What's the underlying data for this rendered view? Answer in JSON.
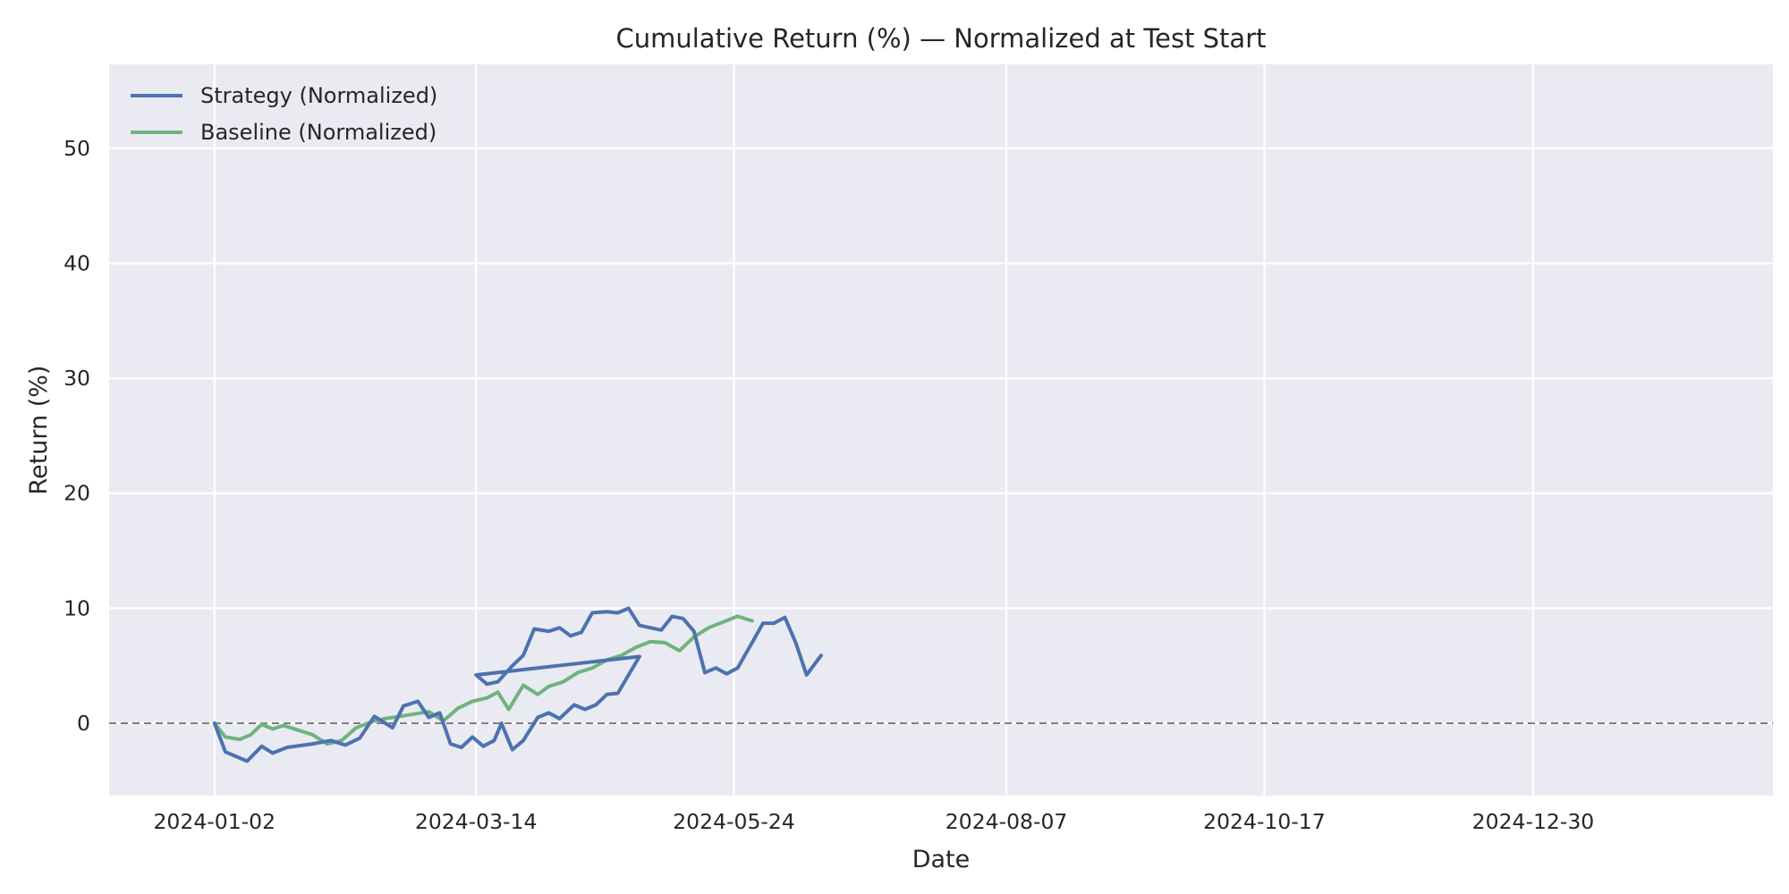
{
  "chart_data": {
    "type": "line",
    "title": "Cumulative Return (%) — Normalized at Test Start",
    "xlabel": "Date",
    "ylabel": "Return (%)",
    "x_range": [
      "2023-12-04",
      "2025-03-06"
    ],
    "ylim": [
      -6.3,
      57.3
    ],
    "x_ticks": [
      "2024-01-02",
      "2024-03-14",
      "2024-05-24",
      "2024-08-07",
      "2024-10-17",
      "2024-12-30"
    ],
    "y_ticks": [
      0,
      10,
      20,
      30,
      40,
      50
    ],
    "grid": true,
    "reference_line": {
      "y": 0,
      "style": "dashed",
      "color": "#808080"
    },
    "legend": {
      "position": "top-left"
    },
    "series": [
      {
        "name": "Strategy (Normalized)",
        "color": "#4c72b0",
        "points": [
          [
            "2024-01-02",
            0.0
          ],
          [
            "2024-01-05",
            -2.5
          ],
          [
            "2024-01-11",
            -3.3
          ],
          [
            "2024-01-15",
            -2.0
          ],
          [
            "2024-01-18",
            -2.6
          ],
          [
            "2024-01-22",
            -2.1
          ],
          [
            "2024-01-29",
            -1.8
          ],
          [
            "2024-02-03",
            -1.5
          ],
          [
            "2024-02-07",
            -1.9
          ],
          [
            "2024-02-11",
            -1.3
          ],
          [
            "2024-02-15",
            0.6
          ],
          [
            "2024-02-20",
            -0.4
          ],
          [
            "2024-02-23",
            1.5
          ],
          [
            "2024-02-27",
            1.9
          ],
          [
            "2024-03-01",
            0.5
          ],
          [
            "2024-03-04",
            0.9
          ],
          [
            "2024-03-07",
            -1.8
          ],
          [
            "2024-03-10",
            -2.1
          ],
          [
            "2024-03-13",
            -1.2
          ],
          [
            "2024-03-16",
            -2.0
          ],
          [
            "2024-03-19",
            -1.5
          ],
          [
            "2024-03-21",
            0.0
          ],
          [
            "2024-03-24",
            -2.3
          ],
          [
            "2024-03-27",
            -1.5
          ],
          [
            "2024-03-31",
            0.5
          ],
          [
            "2024-04-03",
            0.9
          ],
          [
            "2024-04-06",
            0.4
          ],
          [
            "2024-04-10",
            1.6
          ],
          [
            "2024-04-13",
            1.2
          ],
          [
            "2024-04-16",
            1.6
          ],
          [
            "2024-04-19",
            2.5
          ],
          [
            "2024-04-22",
            2.6
          ],
          [
            "2024-04-25",
            4.2
          ],
          [
            "2024-04-28",
            5.8
          ],
          [
            "2024-03-14",
            4.2
          ],
          [
            "2024-03-17",
            3.4
          ],
          [
            "2024-03-20",
            3.6
          ],
          [
            "2024-03-24",
            5.0
          ],
          [
            "2024-03-27",
            5.9
          ],
          [
            "2024-03-30",
            8.2
          ],
          [
            "2024-04-03",
            8.0
          ],
          [
            "2024-04-06",
            8.3
          ],
          [
            "2024-04-09",
            7.6
          ],
          [
            "2024-04-12",
            7.9
          ],
          [
            "2024-04-15",
            9.6
          ],
          [
            "2024-04-19",
            9.7
          ],
          [
            "2024-04-22",
            9.6
          ],
          [
            "2024-04-25",
            10.0
          ],
          [
            "2024-04-28",
            8.5
          ],
          [
            "2024-05-01",
            8.3
          ],
          [
            "2024-05-04",
            8.1
          ],
          [
            "2024-05-07",
            9.3
          ],
          [
            "2024-05-10",
            9.1
          ],
          [
            "2024-05-13",
            8.0
          ],
          [
            "2024-05-16",
            4.4
          ],
          [
            "2024-05-19",
            4.8
          ],
          [
            "2024-05-22",
            4.3
          ],
          [
            "2024-05-25",
            4.8
          ],
          [
            "2024-05-29",
            7.0
          ],
          [
            "2024-06-01",
            8.7
          ],
          [
            "2024-06-04",
            8.7
          ],
          [
            "2024-06-07",
            9.2
          ],
          [
            "2024-06-10",
            7.0
          ],
          [
            "2024-06-13",
            4.2
          ],
          [
            "2024-06-17",
            5.9
          ]
        ]
      },
      {
        "name": "Baseline (Normalized)",
        "color": "#6fb37d",
        "points": [
          [
            "2024-01-02",
            0.0
          ],
          [
            "2024-01-05",
            -1.2
          ],
          [
            "2024-01-09",
            -1.4
          ],
          [
            "2024-01-12",
            -1.0
          ],
          [
            "2024-01-15",
            -0.1
          ],
          [
            "2024-01-18",
            -0.5
          ],
          [
            "2024-01-21",
            -0.2
          ],
          [
            "2024-01-25",
            -0.6
          ],
          [
            "2024-01-29",
            -1.0
          ],
          [
            "2024-02-02",
            -1.8
          ],
          [
            "2024-02-06",
            -1.5
          ],
          [
            "2024-02-10",
            -0.4
          ],
          [
            "2024-02-14",
            0.1
          ],
          [
            "2024-02-18",
            0.4
          ],
          [
            "2024-02-22",
            0.6
          ],
          [
            "2024-02-26",
            0.8
          ],
          [
            "2024-03-01",
            1.0
          ],
          [
            "2024-03-05",
            0.2
          ],
          [
            "2024-03-09",
            1.3
          ],
          [
            "2024-03-13",
            1.9
          ],
          [
            "2024-03-17",
            2.2
          ],
          [
            "2024-03-20",
            2.7
          ],
          [
            "2024-03-23",
            1.2
          ],
          [
            "2024-03-27",
            3.3
          ],
          [
            "2024-03-31",
            2.5
          ],
          [
            "2024-04-03",
            3.2
          ],
          [
            "2024-04-07",
            3.6
          ],
          [
            "2024-04-11",
            4.4
          ],
          [
            "2024-04-15",
            4.8
          ],
          [
            "2024-04-19",
            5.5
          ],
          [
            "2024-04-23",
            5.9
          ],
          [
            "2024-04-27",
            6.6
          ],
          [
            "2024-05-01",
            7.1
          ],
          [
            "2024-05-05",
            7.0
          ],
          [
            "2024-05-09",
            6.3
          ],
          [
            "2024-05-13",
            7.5
          ],
          [
            "2024-05-17",
            8.3
          ],
          [
            "2024-05-21",
            8.8
          ],
          [
            "2024-05-25",
            9.3
          ],
          [
            "2024-05-29",
            8.9
          ]
        ]
      }
    ]
  }
}
